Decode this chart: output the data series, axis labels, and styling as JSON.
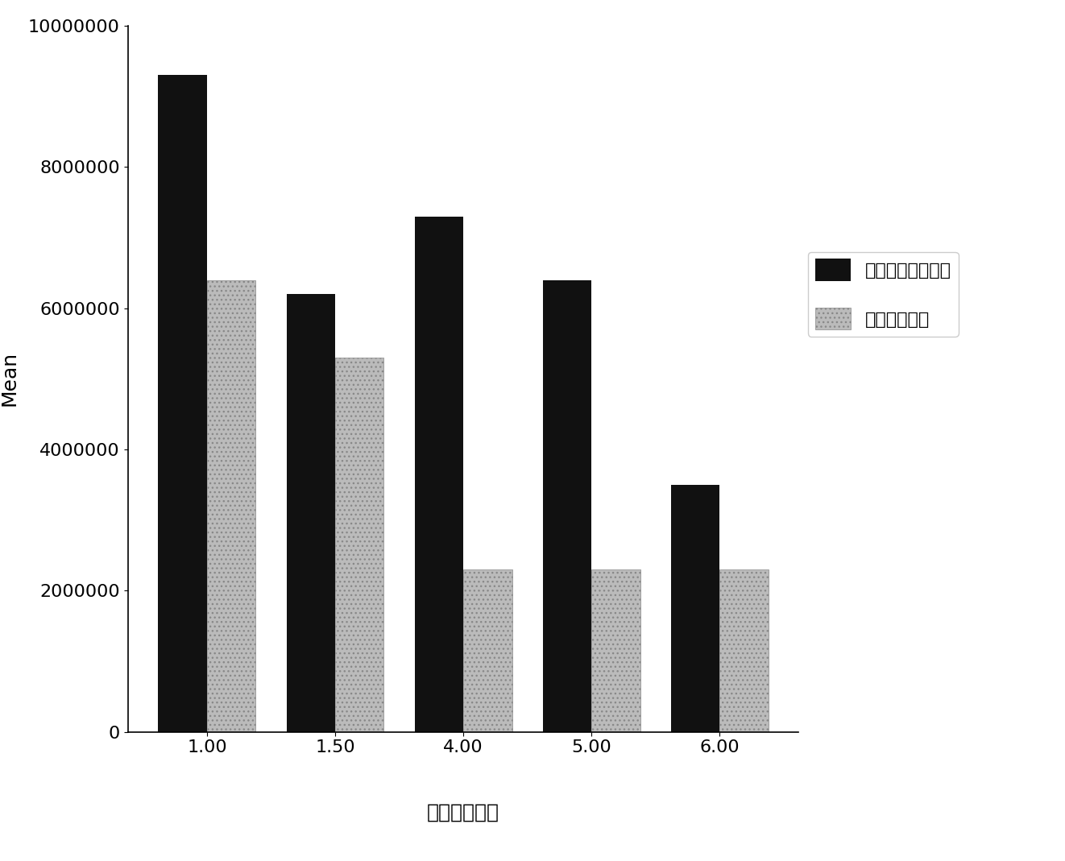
{
  "categories": [
    "1.00",
    "1.50",
    "4.00",
    "5.00",
    "6.00"
  ],
  "series1_values": [
    9300000,
    6200000,
    7300000,
    6400000,
    3500000
  ],
  "series2_values": [
    6400000,
    5300000,
    2300000,
    2300000,
    2300000
  ],
  "series1_color": "#111111",
  "series2_color": "#bbbbbb",
  "series1_label": "本发明的复方中药",
  "series2_label": "芍药绢草复方",
  "ylabel": "Mean",
  "xlabel": "时间（小时）",
  "ylim": [
    0,
    10000000
  ],
  "yticks": [
    0,
    2000000,
    4000000,
    6000000,
    8000000,
    10000000
  ],
  "bar_width": 0.38,
  "background_color": "#ffffff",
  "axis_fontsize": 18,
  "tick_fontsize": 16,
  "legend_fontsize": 16
}
